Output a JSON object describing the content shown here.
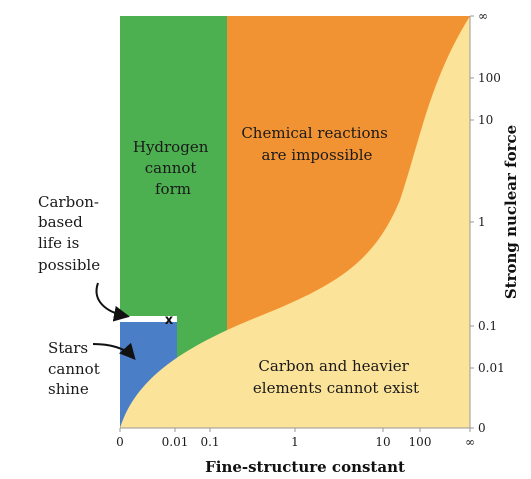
{
  "chart_data": {
    "type": "area",
    "xlabel": "Fine-structure constant",
    "ylabel": "Strong nuclear force",
    "x_ticks": [
      "0",
      "0.01",
      "0.1",
      "1",
      "10",
      "100",
      "∞"
    ],
    "y_ticks": [
      "0",
      "0.01",
      "0.1",
      "1",
      "10",
      "100",
      "∞"
    ],
    "regions": [
      {
        "name": "hydrogen",
        "label_lines": [
          "Hydrogen",
          "cannot",
          "form"
        ],
        "color": "#4caf50"
      },
      {
        "name": "chemical",
        "label_lines": [
          "Chemical reactions",
          "are impossible"
        ],
        "color": "#f29333"
      },
      {
        "name": "carbon",
        "label_lines": [
          "Carbon and heavier",
          "elements cannot exist"
        ],
        "color": "#fce39a"
      },
      {
        "name": "stars",
        "label_lines": [
          "Stars",
          "cannot",
          "shine"
        ],
        "color": "#4a7fc8"
      },
      {
        "name": "life",
        "label_lines": [
          "Carbon-",
          "based",
          "life is",
          "possible"
        ],
        "color": "#ffffff"
      }
    ],
    "hydrogen_boundary_x": 0.2,
    "stars_boundary_y": 0.1,
    "habitable_band": {
      "x": [
        0,
        0.02
      ],
      "y": [
        0.1,
        0.13
      ]
    },
    "our_universe": {
      "marker": "x",
      "x": 0.0073,
      "y": 0.12
    },
    "threshold_curve": [
      {
        "x": 0,
        "y": 0
      },
      {
        "x": 0.02,
        "y": 0.01
      },
      {
        "x": 0.1,
        "y": 0.06
      },
      {
        "x": 0.5,
        "y": 0.1
      },
      {
        "x": 1,
        "y": 0.15
      },
      {
        "x": 10,
        "y": 1
      },
      {
        "x": 100,
        "y": 50
      },
      {
        "x": "∞",
        "y": "∞"
      }
    ]
  }
}
